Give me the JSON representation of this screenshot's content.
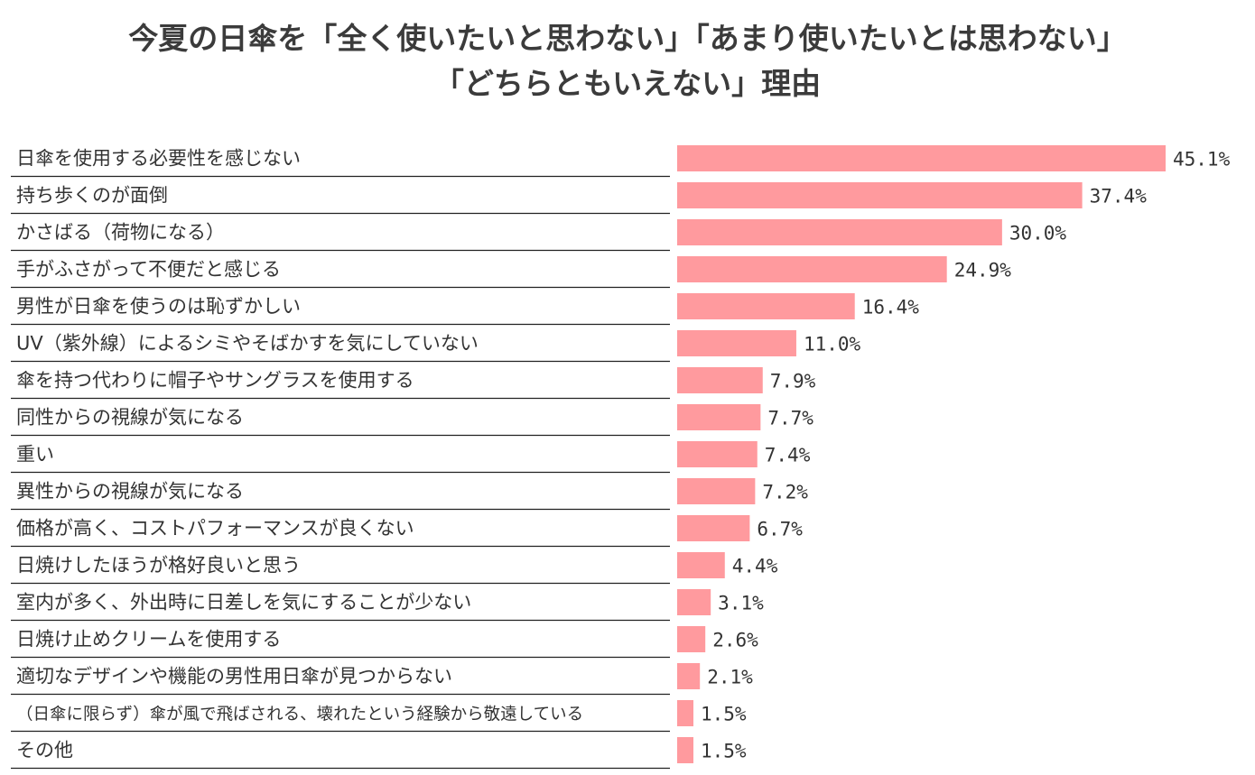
{
  "title_lines": [
    "今夏の日傘を「全く使いたいと思わない」「あまり使いたいとは思わない」",
    "「どちらともいえない」理由"
  ],
  "chart_data": {
    "type": "bar",
    "orientation": "horizontal",
    "bar_color": "#ff9a9e",
    "value_suffix": "%",
    "xlim": [
      0,
      50
    ],
    "grid": false,
    "legend": "none",
    "categories": [
      "日傘を使用する必要性を感じない",
      "持ち歩くのが面倒",
      "かさばる（荷物になる）",
      "手がふさがって不便だと感じる",
      "男性が日傘を使うのは恥ずかしい",
      "UV（紫外線）によるシミやそばかすを気にしていない",
      "傘を持つ代わりに帽子やサングラスを使用する",
      "同性からの視線が気になる",
      "重い",
      "異性からの視線が気になる",
      "価格が高く、コストパフォーマンスが良くない",
      "日焼けしたほうが格好良いと思う",
      "室内が多く、外出時に日差しを気にすることが少ない",
      "日焼け止めクリームを使用する",
      "適切なデザインや機能の男性用日傘が見つからない",
      "（日傘に限らず）傘が風で飛ばされる、壊れたという経験から敬遠している",
      "その他"
    ],
    "values": [
      45.1,
      37.4,
      30.0,
      24.9,
      16.4,
      11.0,
      7.9,
      7.7,
      7.4,
      7.2,
      6.7,
      4.4,
      3.1,
      2.6,
      2.1,
      1.5,
      1.5
    ],
    "value_labels": [
      "45.1%",
      "37.4%",
      "30.0%",
      "24.9%",
      "16.4%",
      "11.0%",
      "7.9%",
      "7.7%",
      "7.4%",
      "7.2%",
      "6.7%",
      "4.4%",
      "3.1%",
      "2.6%",
      "2.1%",
      "1.5%",
      "1.5%"
    ]
  }
}
